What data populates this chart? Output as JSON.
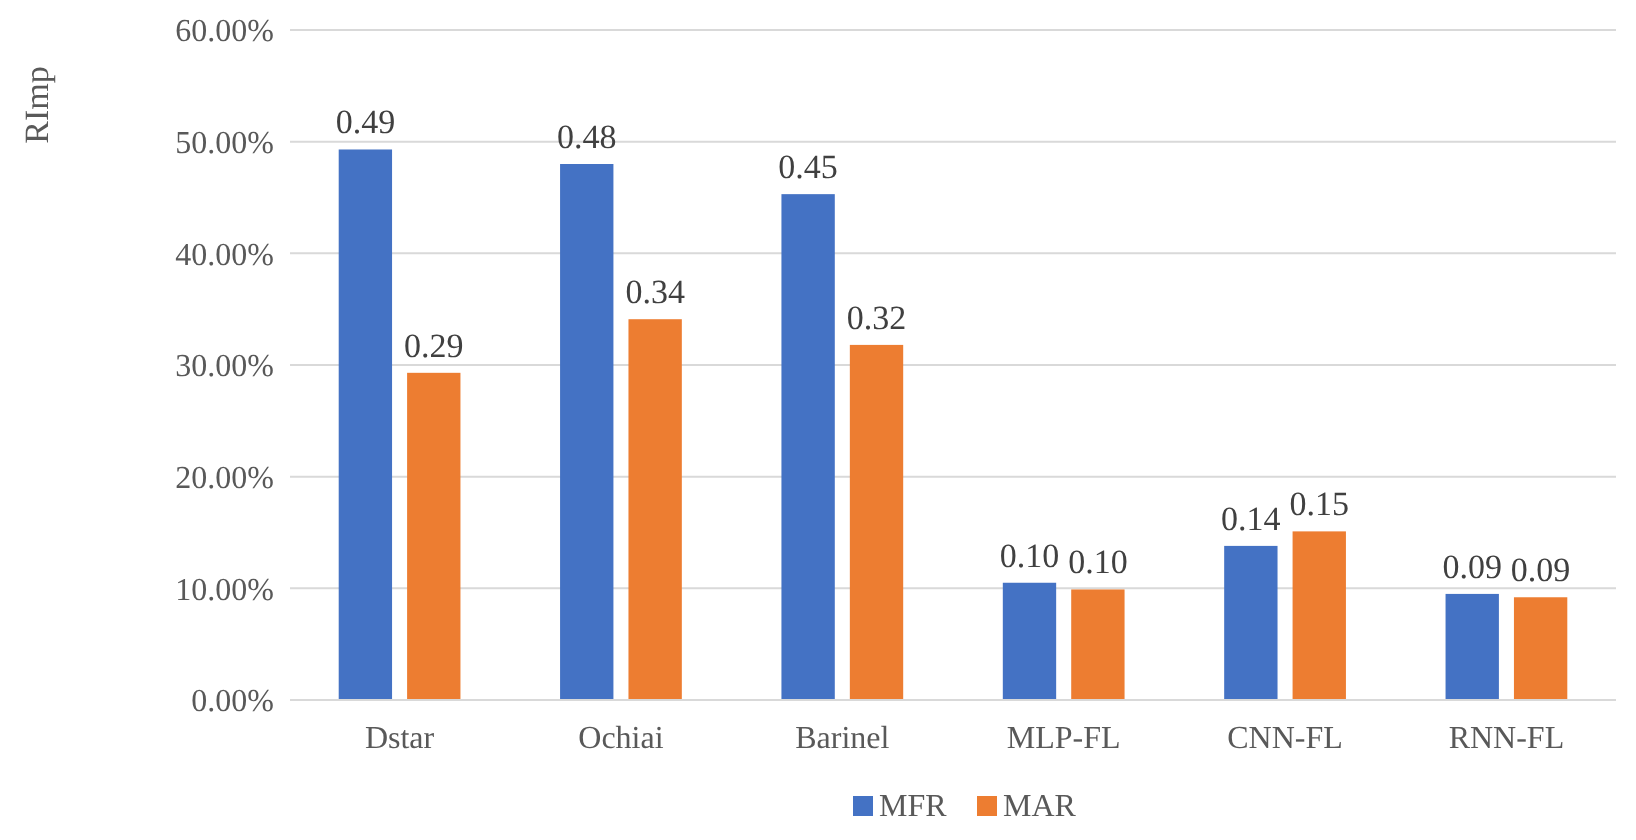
{
  "chart_data": {
    "type": "bar",
    "ylabel": "RImp",
    "categories": [
      "Dstar",
      "Ochiai",
      "Barinel",
      "MLP-FL",
      "CNN-FL",
      "RNN-FL"
    ],
    "series": [
      {
        "name": "MFR",
        "color": "#4472c4",
        "values": [
          0.493,
          0.48,
          0.453,
          0.105,
          0.138,
          0.095
        ],
        "value_labels": [
          "0.49",
          "0.48",
          "0.45",
          "0.10",
          "0.14",
          "0.09"
        ]
      },
      {
        "name": "MAR",
        "color": "#ed7d31",
        "values": [
          0.293,
          0.341,
          0.318,
          0.099,
          0.151,
          0.092
        ],
        "value_labels": [
          "0.29",
          "0.34",
          "0.32",
          "0.10",
          "0.15",
          "0.09"
        ]
      }
    ],
    "ylim": [
      0,
      0.6
    ],
    "yticks": [
      {
        "value": 0,
        "label": "0.00%"
      },
      {
        "value": 0.1,
        "label": "10.00%"
      },
      {
        "value": 0.2,
        "label": "20.00%"
      },
      {
        "value": 0.3,
        "label": "30.00%"
      },
      {
        "value": 0.4,
        "label": "40.00%"
      },
      {
        "value": 0.5,
        "label": "50.00%"
      },
      {
        "value": 0.6,
        "label": "60.00%"
      }
    ],
    "grid": "y",
    "legend": "bottom"
  }
}
